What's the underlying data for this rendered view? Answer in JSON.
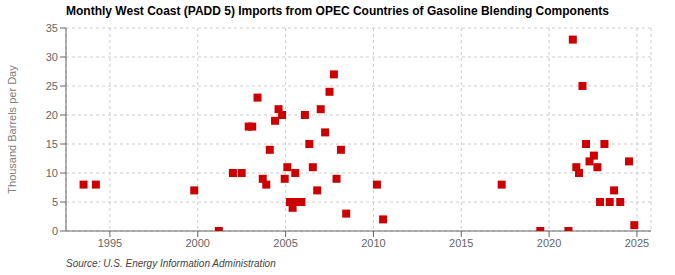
{
  "chart_data": {
    "type": "scatter",
    "title": "Monthly West Coast (PADD 5) Imports from OPEC Countries of Gasoline Blending Components",
    "ylabel": "Thousand Barrels per Day",
    "annotations": [
      "Source: U.S. Energy Information Administration"
    ],
    "color": "#cc0000",
    "marker": "square",
    "grid": true,
    "xlim": [
      1992.5,
      2025.8
    ],
    "ylim": [
      0,
      35
    ],
    "xticks": [
      1995,
      2000,
      2005,
      2010,
      2015,
      2020,
      2025
    ],
    "yticks": [
      0,
      5,
      10,
      15,
      20,
      25,
      30,
      35
    ],
    "x": [
      1993.5,
      1994.2,
      1999.8,
      2001.2,
      2002.0,
      2002.5,
      2002.9,
      2003.1,
      2003.4,
      2003.7,
      2003.9,
      2004.1,
      2004.4,
      2004.6,
      2004.8,
      2004.95,
      2005.1,
      2005.25,
      2005.4,
      2005.55,
      2005.7,
      2005.9,
      2006.1,
      2006.35,
      2006.55,
      2006.8,
      2007.0,
      2007.25,
      2007.5,
      2007.75,
      2007.9,
      2008.15,
      2008.45,
      2010.2,
      2010.55,
      2017.3,
      2019.5,
      2021.1,
      2021.35,
      2021.55,
      2021.7,
      2021.9,
      2022.1,
      2022.3,
      2022.55,
      2022.75,
      2022.9,
      2023.15,
      2023.45,
      2023.7,
      2024.05,
      2024.55,
      2024.85
    ],
    "values": [
      8,
      8,
      7,
      0,
      10,
      10,
      18,
      18,
      23,
      9,
      8,
      14,
      19,
      21,
      20,
      9,
      11,
      5,
      4,
      10,
      5,
      5,
      20,
      15,
      11,
      7,
      21,
      17,
      24,
      27,
      9,
      14,
      3,
      8,
      2,
      8,
      0,
      0,
      33,
      11,
      10,
      25,
      15,
      12,
      13,
      11,
      5,
      15,
      5,
      7,
      5,
      12,
      1
    ]
  }
}
